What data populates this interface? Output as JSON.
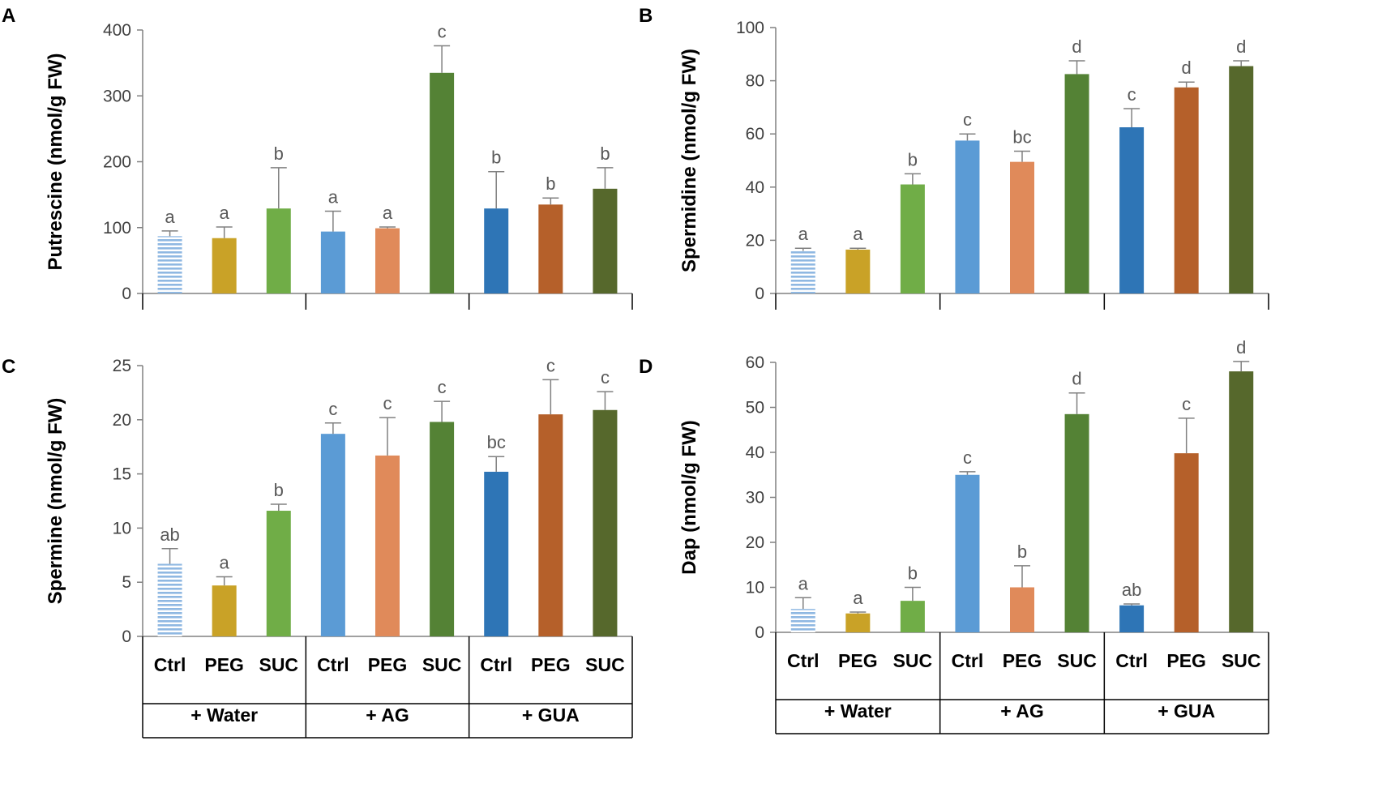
{
  "colors": {
    "Water": [
      "#9DC3E6",
      "#C9A227",
      "#70AD47"
    ],
    "AG": [
      "#5B9BD5",
      "#E08A5A",
      "#548235"
    ],
    "GUA": [
      "#2E75B6",
      "#B5602A",
      "#56682C"
    ]
  },
  "chart_data": [
    {
      "type": "bar",
      "panel": "A",
      "ylabel": "Putrescine (nmol/g FW)",
      "ylim": [
        0,
        400
      ],
      "yticks": [
        0,
        100,
        200,
        300,
        400
      ],
      "ytick_labels": [
        "0",
        "100",
        "200",
        "300",
        "400"
      ],
      "categories": [
        "Ctrl",
        "PEG",
        "SUC",
        "Ctrl",
        "PEG",
        "SUC",
        "Ctrl",
        "PEG",
        "SUC"
      ],
      "groups": [
        "+ Water",
        "+ AG",
        "+ GUA"
      ],
      "values": [
        87,
        84,
        129,
        94,
        99,
        335,
        129,
        135,
        159
      ],
      "errors": [
        8,
        17,
        62,
        31,
        2,
        41,
        56,
        10,
        32
      ],
      "significance": [
        "a",
        "a",
        "b",
        "a",
        "a",
        "c",
        "b",
        "b",
        "b"
      ]
    },
    {
      "type": "bar",
      "panel": "B",
      "ylabel": "Spermidine (nmol/g FW)",
      "ylim": [
        0,
        100
      ],
      "yticks": [
        0,
        20,
        40,
        60,
        80,
        100
      ],
      "ytick_labels": [
        "0",
        "20",
        "40",
        "60",
        "80",
        "100"
      ],
      "categories": [
        "Ctrl",
        "PEG",
        "SUC",
        "Ctrl",
        "PEG",
        "SUC",
        "Ctrl",
        "PEG",
        "SUC"
      ],
      "groups": [
        "+ Water",
        "+ AG",
        "+ GUA"
      ],
      "values": [
        16,
        16.5,
        41,
        57.5,
        49.5,
        82.5,
        62.5,
        77.5,
        85.5
      ],
      "errors": [
        1,
        0.5,
        4,
        2.5,
        4,
        5,
        7,
        2,
        2
      ],
      "significance": [
        "a",
        "a",
        "b",
        "c",
        "bc",
        "d",
        "c",
        "d",
        "d"
      ]
    },
    {
      "type": "bar",
      "panel": "C",
      "ylabel": "Spermine (nmol/g FW)",
      "ylim": [
        0,
        25
      ],
      "yticks": [
        0,
        5,
        10,
        15,
        20,
        25
      ],
      "ytick_labels": [
        "0",
        "5",
        "10",
        "15",
        "20",
        "25"
      ],
      "categories": [
        "Ctrl",
        "PEG",
        "SUC",
        "Ctrl",
        "PEG",
        "SUC",
        "Ctrl",
        "PEG",
        "SUC"
      ],
      "groups": [
        "+ Water",
        "+ AG",
        "+ GUA"
      ],
      "values": [
        6.7,
        4.7,
        11.6,
        18.7,
        16.7,
        19.8,
        15.2,
        20.5,
        20.9
      ],
      "errors": [
        1.4,
        0.8,
        0.6,
        1.0,
        3.5,
        1.9,
        1.4,
        3.2,
        1.7
      ],
      "significance": [
        "ab",
        "a",
        "b",
        "c",
        "c",
        "c",
        "bc",
        "c",
        "c"
      ]
    },
    {
      "type": "bar",
      "panel": "D",
      "ylabel": "Dap (nmol/g FW)",
      "ylim": [
        0,
        60
      ],
      "yticks": [
        0,
        10,
        20,
        30,
        40,
        50,
        60
      ],
      "ytick_labels": [
        "0",
        "10",
        "20",
        "30",
        "40",
        "50",
        "60"
      ],
      "categories": [
        "Ctrl",
        "PEG",
        "SUC",
        "Ctrl",
        "PEG",
        "SUC",
        "Ctrl",
        "PEG",
        "SUC"
      ],
      "groups": [
        "+ Water",
        "+ AG",
        "+ GUA"
      ],
      "values": [
        5.2,
        4.2,
        7.0,
        35.0,
        10.0,
        48.5,
        6.0,
        39.8,
        58.0
      ],
      "errors": [
        2.5,
        0.3,
        3.0,
        0.7,
        4.8,
        4.7,
        0.3,
        7.8,
        2.2
      ],
      "significance": [
        "a",
        "a",
        "b",
        "c",
        "b",
        "d",
        "ab",
        "c",
        "d"
      ]
    }
  ]
}
